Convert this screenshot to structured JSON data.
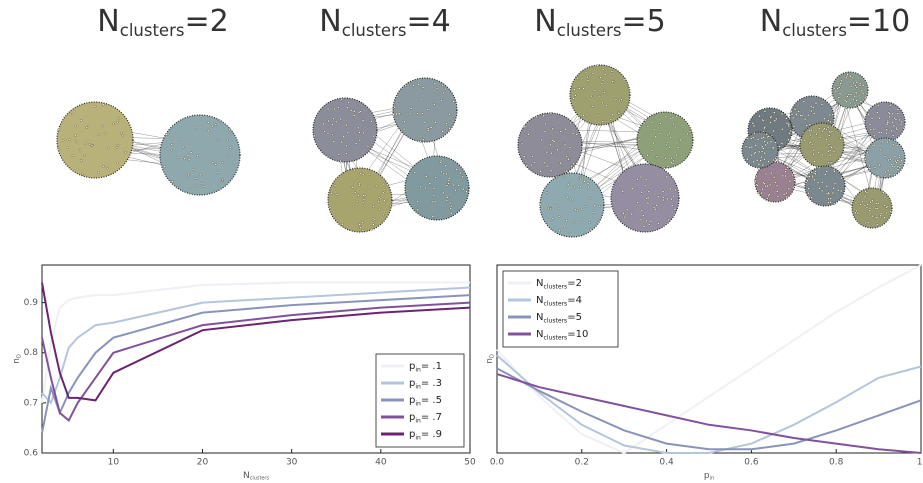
{
  "panels": [
    {
      "symbol": "N",
      "subscript": "clusters",
      "rest": "=2"
    },
    {
      "symbol": "N",
      "subscript": "clusters",
      "rest": "=4"
    },
    {
      "symbol": "N",
      "subscript": "clusters",
      "rest": "=5"
    },
    {
      "symbol": "N",
      "subscript": "clusters",
      "rest": "=10"
    }
  ],
  "chart_data": [
    {
      "type": "line",
      "xlabel_symbol": "N",
      "xlabel_subscript": "clusters",
      "ylabel_symbol": "n",
      "ylabel_subscript": "D",
      "x": [
        2,
        3,
        4,
        5,
        6,
        8,
        10,
        20,
        30,
        40,
        50
      ],
      "xlim": [
        2,
        50
      ],
      "xticks": [
        10,
        20,
        30,
        40,
        50
      ],
      "ylim": [
        0.6,
        0.975
      ],
      "yticks": [
        0.6,
        0.7,
        0.8,
        0.9
      ],
      "legend": "lower right",
      "legend_symbol": "p",
      "legend_subscript": "in",
      "series": [
        {
          "name": "= .1",
          "color": "#eef0f5",
          "values": [
            0.7,
            0.82,
            0.89,
            0.905,
            0.91,
            0.915,
            0.915,
            0.935,
            0.94,
            0.94,
            0.94
          ]
        },
        {
          "name": "= .3",
          "color": "#b5c5db",
          "values": [
            0.72,
            0.7,
            0.75,
            0.81,
            0.83,
            0.855,
            0.86,
            0.9,
            0.91,
            0.92,
            0.93
          ]
        },
        {
          "name": "= .5",
          "color": "#8a93bb",
          "values": [
            0.64,
            0.73,
            0.68,
            0.72,
            0.75,
            0.8,
            0.83,
            0.88,
            0.895,
            0.905,
            0.915
          ]
        },
        {
          "name": "= .7",
          "color": "#80529c",
          "values": [
            0.83,
            0.75,
            0.68,
            0.665,
            0.7,
            0.75,
            0.8,
            0.855,
            0.875,
            0.89,
            0.9
          ]
        },
        {
          "name": "= .9",
          "color": "#6b2470",
          "values": [
            0.94,
            0.84,
            0.76,
            0.71,
            0.71,
            0.705,
            0.76,
            0.845,
            0.865,
            0.88,
            0.89
          ]
        }
      ]
    },
    {
      "type": "line",
      "xlabel_symbol": "p",
      "xlabel_subscript": "in",
      "ylabel_symbol": "n",
      "ylabel_subscript": "D",
      "x": [
        0,
        0.1,
        0.2,
        0.3,
        0.4,
        0.5,
        0.6,
        0.7,
        0.8,
        0.9,
        1
      ],
      "xlim": [
        0,
        1
      ],
      "xticks": [
        {
          "value": 0,
          "label": "0.0"
        },
        {
          "value": 0.2,
          "label": "0.2"
        },
        {
          "value": 0.4,
          "label": "0.4"
        },
        {
          "value": 0.6,
          "label": "0.6"
        },
        {
          "value": 0.8,
          "label": "0.8"
        },
        {
          "value": 1,
          "label": "1."
        }
      ],
      "ylim": [
        0,
        1
      ],
      "legend": "upper left",
      "legend_symbol": "N",
      "legend_subscript": "clusters",
      "series": [
        {
          "name": "=2",
          "color": "#eef0f5",
          "values": [
            0.55,
            0.3,
            0.1,
            0.0,
            0.15,
            0.3,
            0.45,
            0.6,
            0.75,
            0.88,
            1.0
          ]
        },
        {
          "name": "=4",
          "color": "#b5c5db",
          "values": [
            0.52,
            0.32,
            0.15,
            0.04,
            0.0,
            0.0,
            0.05,
            0.15,
            0.27,
            0.4,
            0.46
          ]
        },
        {
          "name": "=5",
          "color": "#8a93bb",
          "values": [
            0.45,
            0.33,
            0.22,
            0.12,
            0.05,
            0.02,
            0.02,
            0.05,
            0.12,
            0.2,
            0.28
          ]
        },
        {
          "name": "=10",
          "color": "#80529c",
          "values": [
            0.42,
            0.35,
            0.3,
            0.25,
            0.2,
            0.15,
            0.12,
            0.08,
            0.05,
            0.02,
            0.0
          ]
        }
      ]
    }
  ]
}
